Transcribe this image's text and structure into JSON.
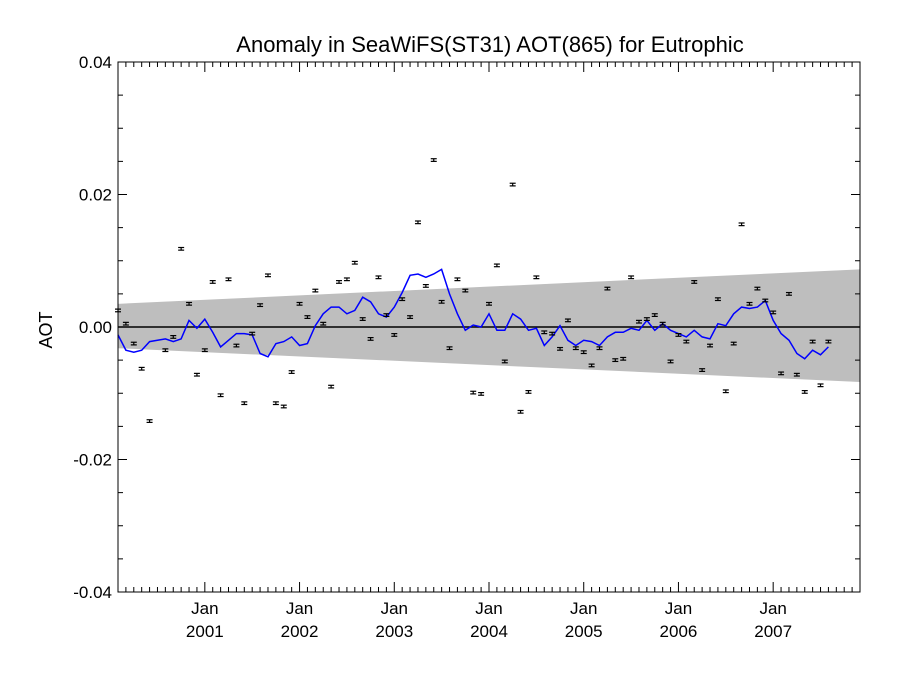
{
  "chart_data": {
    "type": "scatter",
    "title": "Anomaly in SeaWiFS(ST31) AOT(865) for Eutrophic",
    "ylabel": "AOT",
    "xlabel": "",
    "x_ticks": [
      {
        "month": "Jan",
        "year": "2001",
        "date": "2001-01"
      },
      {
        "month": "Jan",
        "year": "2002",
        "date": "2002-01"
      },
      {
        "month": "Jan",
        "year": "2003",
        "date": "2003-01"
      },
      {
        "month": "Jan",
        "year": "2004",
        "date": "2004-01"
      },
      {
        "month": "Jan",
        "year": "2005",
        "date": "2005-01"
      },
      {
        "month": "Jan",
        "year": "2006",
        "date": "2006-01"
      },
      {
        "month": "Jan",
        "year": "2007",
        "date": "2007-01"
      }
    ],
    "xlim": [
      "2000-02",
      "2007-12"
    ],
    "ylim": [
      -0.04,
      0.04
    ],
    "y_ticks": [
      "-0.04",
      "-0.02",
      "0.00",
      "0.02",
      "0.04"
    ],
    "zero_line": 0.0,
    "colors": {
      "band": "#bebebe",
      "trend": "#0000ff",
      "points": "#000000"
    },
    "confidence_band": {
      "start": {
        "date": "2000-02",
        "lower": -0.0032,
        "upper": 0.0035
      },
      "end": {
        "date": "2007-12",
        "lower": -0.0083,
        "upper": 0.0087
      }
    },
    "series": [
      {
        "type": "errorbar",
        "error": 0.0002,
        "points": [
          [
            "2000-02",
            0.0025
          ],
          [
            "2000-03",
            0.0005
          ],
          [
            "2000-04",
            -0.0025
          ],
          [
            "2000-05",
            -0.0063
          ],
          [
            "2000-06",
            -0.0142
          ],
          [
            "2000-08",
            -0.0035
          ],
          [
            "2000-09",
            -0.0015
          ],
          [
            "2000-10",
            0.0118
          ],
          [
            "2000-11",
            0.0035
          ],
          [
            "2000-12",
            -0.0072
          ],
          [
            "2001-01",
            -0.0035
          ],
          [
            "2001-02",
            0.0068
          ],
          [
            "2001-03",
            -0.0103
          ],
          [
            "2001-04",
            0.0072
          ],
          [
            "2001-05",
            -0.0028
          ],
          [
            "2001-06",
            -0.0115
          ],
          [
            "2001-07",
            -0.001
          ],
          [
            "2001-08",
            0.0033
          ],
          [
            "2001-09",
            0.0078
          ],
          [
            "2001-10",
            -0.0115
          ],
          [
            "2001-11",
            -0.012
          ],
          [
            "2001-12",
            -0.0068
          ],
          [
            "2002-01",
            0.0035
          ],
          [
            "2002-02",
            0.0015
          ],
          [
            "2002-03",
            0.0055
          ],
          [
            "2002-04",
            0.0005
          ],
          [
            "2002-05",
            -0.009
          ],
          [
            "2002-06",
            0.0068
          ],
          [
            "2002-07",
            0.0072
          ],
          [
            "2002-08",
            0.0097
          ],
          [
            "2002-09",
            0.0012
          ],
          [
            "2002-10",
            -0.0018
          ],
          [
            "2002-11",
            0.0075
          ],
          [
            "2002-12",
            0.0018
          ],
          [
            "2003-01",
            -0.0012
          ],
          [
            "2003-02",
            0.0042
          ],
          [
            "2003-03",
            0.0015
          ],
          [
            "2003-04",
            0.0158
          ],
          [
            "2003-05",
            0.0062
          ],
          [
            "2003-06",
            0.0252
          ],
          [
            "2003-07",
            0.0038
          ],
          [
            "2003-08",
            -0.0032
          ],
          [
            "2003-09",
            0.0072
          ],
          [
            "2003-10",
            0.0055
          ],
          [
            "2003-11",
            -0.0099
          ],
          [
            "2003-12",
            -0.0101
          ],
          [
            "2004-01",
            0.0035
          ],
          [
            "2004-02",
            0.0093
          ],
          [
            "2004-03",
            -0.0052
          ],
          [
            "2004-04",
            0.0215
          ],
          [
            "2004-05",
            -0.0128
          ],
          [
            "2004-06",
            -0.0098
          ],
          [
            "2004-07",
            0.0075
          ],
          [
            "2004-08",
            -0.0008
          ],
          [
            "2004-09",
            -0.001
          ],
          [
            "2004-10",
            -0.0033
          ],
          [
            "2004-11",
            0.001
          ],
          [
            "2004-12",
            -0.0032
          ],
          [
            "2005-01",
            -0.0038
          ],
          [
            "2005-02",
            -0.0058
          ],
          [
            "2005-03",
            -0.0032
          ],
          [
            "2005-04",
            0.0058
          ],
          [
            "2005-05",
            -0.005
          ],
          [
            "2005-06",
            -0.0048
          ],
          [
            "2005-07",
            0.0075
          ],
          [
            "2005-08",
            0.0008
          ],
          [
            "2005-09",
            0.0012
          ],
          [
            "2005-10",
            0.0018
          ],
          [
            "2005-11",
            0.0005
          ],
          [
            "2005-12",
            -0.0052
          ],
          [
            "2006-01",
            -0.0012
          ],
          [
            "2006-02",
            -0.0022
          ],
          [
            "2006-03",
            0.0068
          ],
          [
            "2006-04",
            -0.0065
          ],
          [
            "2006-05",
            -0.0028
          ],
          [
            "2006-06",
            0.0042
          ],
          [
            "2006-07",
            -0.0097
          ],
          [
            "2006-08",
            -0.0025
          ],
          [
            "2006-09",
            0.0155
          ],
          [
            "2006-10",
            0.0035
          ],
          [
            "2006-11",
            0.0058
          ],
          [
            "2006-12",
            0.004
          ],
          [
            "2007-01",
            0.0022
          ],
          [
            "2007-02",
            -0.007
          ],
          [
            "2007-03",
            0.005
          ],
          [
            "2007-04",
            -0.0072
          ],
          [
            "2007-05",
            -0.0098
          ],
          [
            "2007-06",
            -0.0022
          ],
          [
            "2007-07",
            -0.0088
          ],
          [
            "2007-08",
            -0.0022
          ]
        ]
      },
      {
        "type": "line",
        "points": [
          [
            "2000-02",
            -0.0012
          ],
          [
            "2000-03",
            -0.0035
          ],
          [
            "2000-04",
            -0.0038
          ],
          [
            "2000-05",
            -0.0035
          ],
          [
            "2000-06",
            -0.0022
          ],
          [
            "2000-07",
            -0.002
          ],
          [
            "2000-08",
            -0.0018
          ],
          [
            "2000-09",
            -0.0022
          ],
          [
            "2000-10",
            -0.0018
          ],
          [
            "2000-11",
            0.001
          ],
          [
            "2000-12",
            -0.0002
          ],
          [
            "2001-01",
            0.0012
          ],
          [
            "2001-02",
            -0.0008
          ],
          [
            "2001-03",
            -0.003
          ],
          [
            "2001-04",
            -0.002
          ],
          [
            "2001-05",
            -0.001
          ],
          [
            "2001-06",
            -0.001
          ],
          [
            "2001-07",
            -0.0012
          ],
          [
            "2001-08",
            -0.004
          ],
          [
            "2001-09",
            -0.0045
          ],
          [
            "2001-10",
            -0.0025
          ],
          [
            "2001-11",
            -0.0022
          ],
          [
            "2001-12",
            -0.0015
          ],
          [
            "2002-01",
            -0.0028
          ],
          [
            "2002-02",
            -0.0025
          ],
          [
            "2002-03",
            0.0002
          ],
          [
            "2002-04",
            0.002
          ],
          [
            "2002-05",
            0.003
          ],
          [
            "2002-06",
            0.003
          ],
          [
            "2002-07",
            0.002
          ],
          [
            "2002-08",
            0.0025
          ],
          [
            "2002-09",
            0.0045
          ],
          [
            "2002-10",
            0.0038
          ],
          [
            "2002-11",
            0.002
          ],
          [
            "2002-12",
            0.0015
          ],
          [
            "2003-01",
            0.003
          ],
          [
            "2003-02",
            0.0052
          ],
          [
            "2003-03",
            0.0078
          ],
          [
            "2003-04",
            0.008
          ],
          [
            "2003-05",
            0.0075
          ],
          [
            "2003-06",
            0.008
          ],
          [
            "2003-07",
            0.0087
          ],
          [
            "2003-08",
            0.005
          ],
          [
            "2003-09",
            0.002
          ],
          [
            "2003-10",
            -0.0005
          ],
          [
            "2003-11",
            0.0003
          ],
          [
            "2003-12",
            0.0
          ],
          [
            "2004-01",
            0.002
          ],
          [
            "2004-02",
            -0.0005
          ],
          [
            "2004-03",
            -0.0005
          ],
          [
            "2004-04",
            0.002
          ],
          [
            "2004-05",
            0.0012
          ],
          [
            "2004-06",
            -0.0005
          ],
          [
            "2004-07",
            -0.0002
          ],
          [
            "2004-08",
            -0.0028
          ],
          [
            "2004-09",
            -0.0015
          ],
          [
            "2004-10",
            0.0002
          ],
          [
            "2004-11",
            -0.002
          ],
          [
            "2004-12",
            -0.0028
          ],
          [
            "2005-01",
            -0.002
          ],
          [
            "2005-02",
            -0.0022
          ],
          [
            "2005-03",
            -0.0028
          ],
          [
            "2005-04",
            -0.0015
          ],
          [
            "2005-05",
            -0.0008
          ],
          [
            "2005-06",
            -0.0008
          ],
          [
            "2005-07",
            -0.0002
          ],
          [
            "2005-08",
            -0.0005
          ],
          [
            "2005-09",
            0.001
          ],
          [
            "2005-10",
            -0.0005
          ],
          [
            "2005-11",
            0.0005
          ],
          [
            "2005-12",
            -0.0005
          ],
          [
            "2006-01",
            -0.001
          ],
          [
            "2006-02",
            -0.0015
          ],
          [
            "2006-03",
            -0.0005
          ],
          [
            "2006-04",
            -0.0015
          ],
          [
            "2006-05",
            -0.0018
          ],
          [
            "2006-06",
            0.0005
          ],
          [
            "2006-07",
            0.0002
          ],
          [
            "2006-08",
            0.002
          ],
          [
            "2006-09",
            0.003
          ],
          [
            "2006-10",
            0.0028
          ],
          [
            "2006-11",
            0.003
          ],
          [
            "2006-12",
            0.004
          ],
          [
            "2007-01",
            0.001
          ],
          [
            "2007-02",
            -0.001
          ],
          [
            "2007-03",
            -0.002
          ],
          [
            "2007-04",
            -0.004
          ],
          [
            "2007-05",
            -0.0048
          ],
          [
            "2007-06",
            -0.0035
          ],
          [
            "2007-07",
            -0.0042
          ],
          [
            "2007-08",
            -0.003
          ]
        ]
      }
    ]
  }
}
